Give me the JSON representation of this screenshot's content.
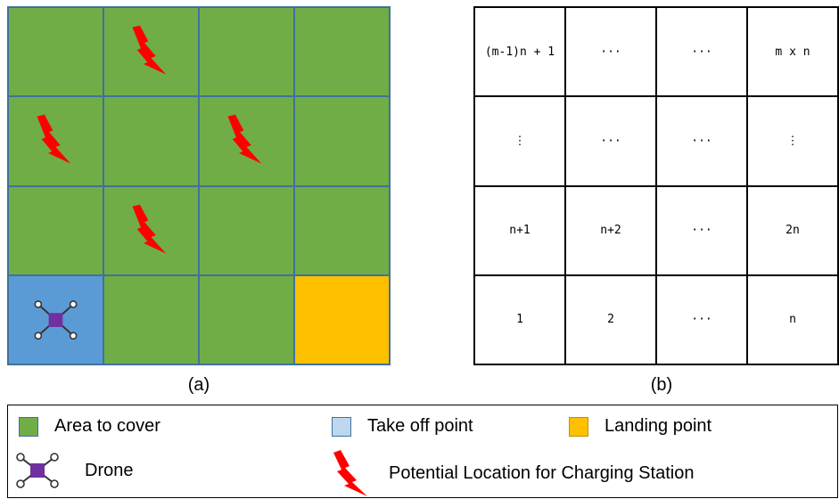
{
  "panel_a": {
    "caption": "(a)",
    "grid_rows": 4,
    "grid_cols": 4,
    "cells": [
      [
        "area",
        "area",
        "area",
        "area"
      ],
      [
        "area",
        "area",
        "area",
        "area"
      ],
      [
        "area",
        "area",
        "area",
        "area"
      ],
      [
        "takeoff",
        "area",
        "area",
        "landing"
      ]
    ],
    "charging_stations": [
      [
        0,
        1
      ],
      [
        1,
        0
      ],
      [
        1,
        2
      ],
      [
        2,
        1
      ]
    ],
    "drone_cell": [
      3,
      0
    ],
    "colors": {
      "area": "#70AD47",
      "takeoff": "#5B9BD5",
      "landing": "#FFC000",
      "grid_line": "#41719C",
      "charging": "#FF0000",
      "drone_body": "#7030A0"
    }
  },
  "panel_b": {
    "caption": "(b)",
    "rows": [
      [
        "(m-1)n + 1",
        "···",
        "···",
        "m x n"
      ],
      [
        "⋮",
        "···",
        "···",
        "⋮"
      ],
      [
        "n+1",
        "n+2",
        "···",
        "2n"
      ],
      [
        "1",
        "2",
        "···",
        "n"
      ]
    ]
  },
  "legend": {
    "area_label": "Area to cover",
    "takeoff_label": "Take off point",
    "landing_label": "Landing point",
    "drone_label": "Drone",
    "charging_label": "Potential Location for Charging Station"
  }
}
